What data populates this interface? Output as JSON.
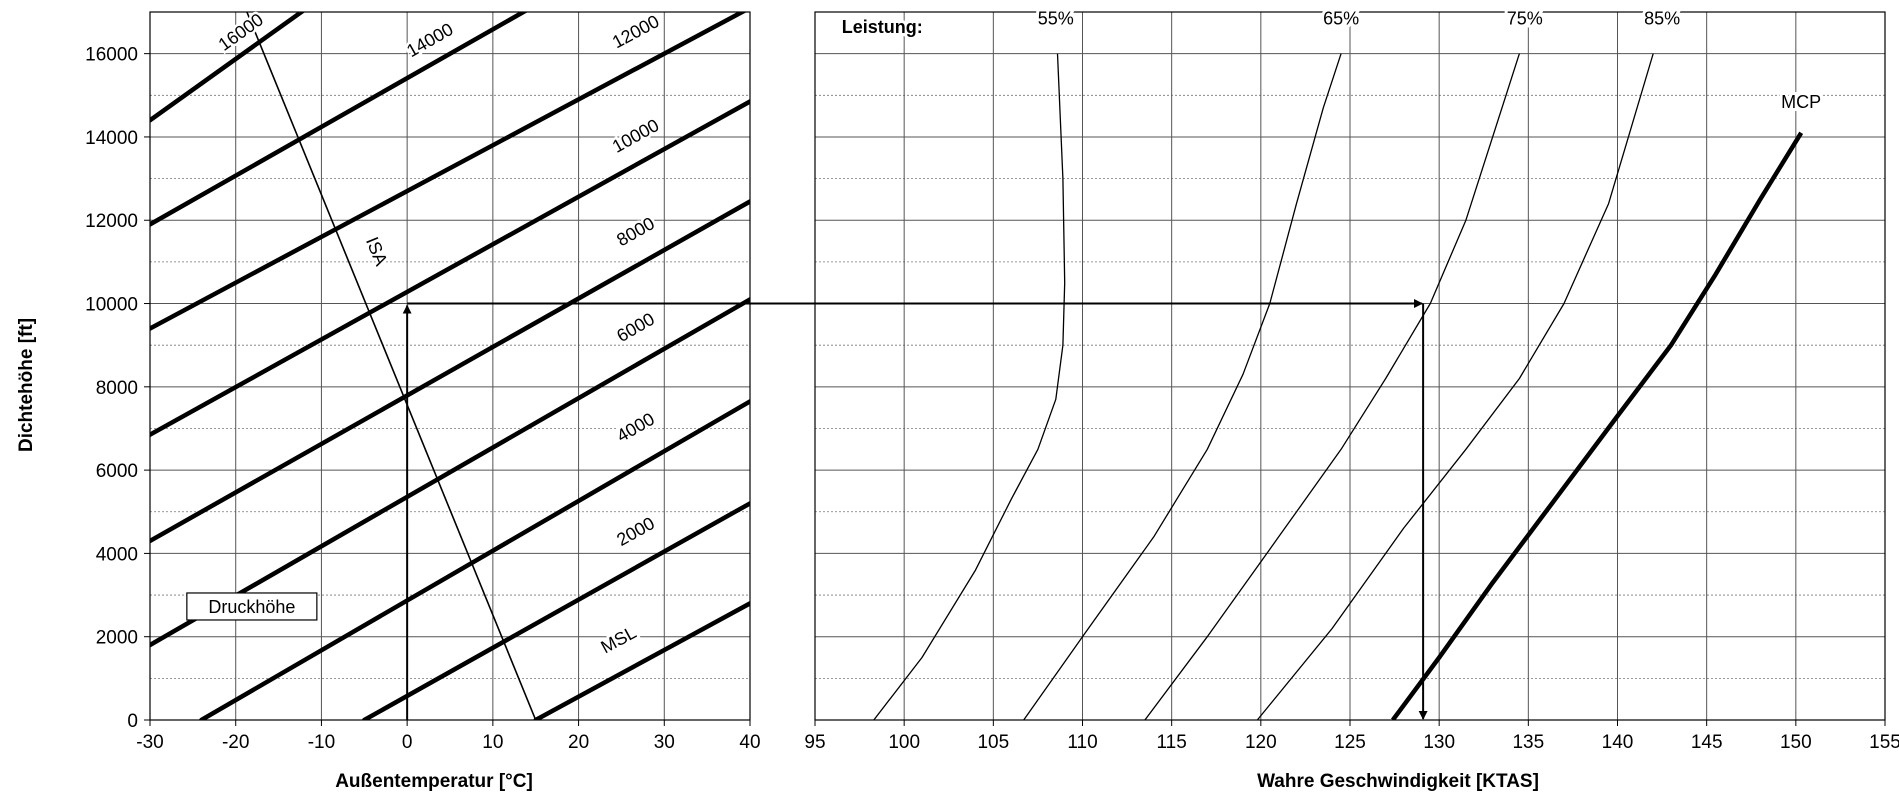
{
  "chart_data": [
    {
      "type": "line",
      "title": "",
      "xlabel": "Außentemperatur [°C]",
      "ylabel": "Dichtehöhe [ft]",
      "xlim": [
        -30,
        40
      ],
      "ylim": [
        0,
        17000
      ],
      "x_ticks": [
        "-30",
        "-20",
        "-10",
        "0",
        "10",
        "20",
        "30",
        "40"
      ],
      "y_ticks": [
        "0",
        "2000",
        "4000",
        "6000",
        "8000",
        "10000",
        "12000",
        "14000",
        "16000"
      ],
      "grid": true,
      "legend": "Druckhöhe",
      "series": [
        {
          "name": "MSL",
          "label_at": [
            25,
            1800
          ],
          "x": [
            15,
            40
          ],
          "y": [
            0,
            2800
          ]
        },
        {
          "name": "2000",
          "label_at": [
            27,
            4400
          ],
          "x": [
            -5,
            40
          ],
          "y": [
            0,
            5200
          ]
        },
        {
          "name": "4000",
          "label_at": [
            27,
            6900
          ],
          "x": [
            -24,
            40
          ],
          "y": [
            0,
            7650
          ]
        },
        {
          "name": "6000",
          "label_at": [
            27,
            9300
          ],
          "x": [
            -30,
            40
          ],
          "y": [
            1800,
            10100
          ]
        },
        {
          "name": "8000",
          "label_at": [
            27,
            11600
          ],
          "x": [
            -30,
            40
          ],
          "y": [
            4300,
            12450
          ]
        },
        {
          "name": "10000",
          "label_at": [
            27,
            13900
          ],
          "x": [
            -30,
            40
          ],
          "y": [
            6850,
            14850
          ]
        },
        {
          "name": "12000",
          "label_at": [
            27,
            16400
          ],
          "x": [
            -30,
            40
          ],
          "y": [
            9400,
            17100
          ]
        },
        {
          "name": "14000",
          "label_at": [
            3,
            16200
          ],
          "x": [
            -30,
            14
          ],
          "y": [
            11900,
            17050
          ]
        },
        {
          "name": "16000",
          "label_at": [
            -19,
            16400
          ],
          "x": [
            -30,
            -12
          ],
          "y": [
            14400,
            17050
          ]
        }
      ],
      "isa_line": {
        "name": "ISA",
        "x": [
          -18.7,
          15
        ],
        "y": [
          17000,
          0
        ]
      },
      "example_path": {
        "x": [
          0,
          0,
          40
        ],
        "y": [
          0,
          10000,
          10000
        ]
      }
    },
    {
      "type": "line",
      "title": "",
      "xlabel": "Wahre Geschwindigkeit  [KTAS]",
      "ylabel": "",
      "xlim": [
        95,
        155
      ],
      "ylim": [
        0,
        17000
      ],
      "x_ticks": [
        "95",
        "100",
        "105",
        "110",
        "115",
        "120",
        "125",
        "130",
        "135",
        "140",
        "145",
        "150",
        "155"
      ],
      "grid": true,
      "legend_title": "Leistung:",
      "series": [
        {
          "name": "55%",
          "label_at": [
            108.5,
            16700
          ],
          "x": [
            98.3,
            101,
            104,
            106,
            107.5,
            108.5,
            108.9,
            109,
            108.9,
            108.6
          ],
          "y": [
            0,
            1500,
            3600,
            5300,
            6500,
            7700,
            9000,
            10500,
            13000,
            16000
          ]
        },
        {
          "name": "65%",
          "label_at": [
            124.5,
            16700
          ],
          "x": [
            106.7,
            110,
            114,
            117,
            119,
            120.5,
            122,
            123.5,
            124.5
          ],
          "y": [
            0,
            2000,
            4400,
            6500,
            8300,
            10000,
            12400,
            14700,
            16000
          ]
        },
        {
          "name": "75%",
          "label_at": [
            134.8,
            16700
          ],
          "x": [
            113.5,
            117,
            121,
            124.5,
            127,
            129.5,
            131.5,
            134.5
          ],
          "y": [
            0,
            2000,
            4400,
            6500,
            8200,
            10000,
            12000,
            16000
          ]
        },
        {
          "name": "85%",
          "label_at": [
            142.5,
            16700
          ],
          "x": [
            119.8,
            124,
            128,
            131.5,
            134.5,
            137,
            139.5,
            142
          ],
          "y": [
            0,
            2200,
            4600,
            6500,
            8200,
            10000,
            12400,
            16000
          ]
        },
        {
          "name": "MCP",
          "label_at": [
            150.3,
            14700
          ],
          "x": [
            127.4,
            130,
            133,
            136.5,
            140,
            143,
            145.5,
            148,
            150.3
          ],
          "y": [
            0,
            1500,
            3300,
            5300,
            7300,
            9000,
            10700,
            12500,
            14100
          ]
        }
      ],
      "example_path": {
        "x": [
          95,
          129.1,
          129.1
        ],
        "y": [
          10000,
          10000,
          0
        ]
      }
    }
  ]
}
